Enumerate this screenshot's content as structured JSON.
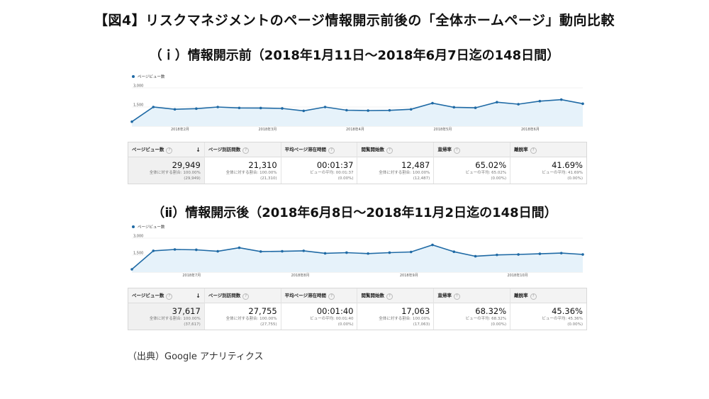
{
  "title": "【図4】リスクマネジメントのページ情報開示前後の「全体ホームページ」動向比較",
  "source_note": "（出典）Google アナリティクス",
  "colors": {
    "line": "#1f6aa5",
    "area": "#e6f2fa"
  },
  "sections": [
    {
      "heading": "（ｉ）情報開示前（2018年1月11日～2018年6月7日迄の148日間）",
      "chart_data": {
        "type": "area",
        "legend": "ページビュー数",
        "y_ticks": [
          "3,000",
          "1,500"
        ],
        "ylim": [
          0,
          3000
        ],
        "x_ticks": [
          "2018年2月",
          "2018年3月",
          "2018年4月",
          "2018年5月",
          "2018年6月"
        ],
        "values": [
          350,
          1500,
          1320,
          1370,
          1500,
          1430,
          1420,
          1390,
          1200,
          1500,
          1250,
          1220,
          1240,
          1320,
          1800,
          1480,
          1440,
          1880,
          1720,
          1960,
          2080,
          1760
        ]
      },
      "stats": [
        {
          "label": "ページビュー数",
          "value": "29,949",
          "sub1": "全体に対する割合: 100.00%",
          "sub2": "(29,949)",
          "sort": "↓"
        },
        {
          "label": "ページ別訪問数",
          "value": "21,310",
          "sub1": "全体に対する割合: 100.00%",
          "sub2": "(21,310)"
        },
        {
          "label": "平均ページ滞在時間",
          "value": "00:01:37",
          "sub1": "ビューの平均: 00:01:37",
          "sub2": "(0.00%)"
        },
        {
          "label": "閲覧開始数",
          "value": "12,487",
          "sub1": "全体に対する割合: 100.00%",
          "sub2": "(12,487)"
        },
        {
          "label": "直帰率",
          "value": "65.02%",
          "sub1": "ビューの平均: 65.02%",
          "sub2": "(0.00%)"
        },
        {
          "label": "離脱率",
          "value": "41.69%",
          "sub1": "ビューの平均: 41.69%",
          "sub2": "(0.00%)"
        }
      ]
    },
    {
      "heading": "（ⅱ）情報開示後（2018年6月8日～2018年11月2日迄の148日間）",
      "chart_data": {
        "type": "area",
        "legend": "ページビュー数",
        "y_ticks": [
          "3,000",
          "1,500"
        ],
        "ylim": [
          0,
          3000
        ],
        "x_ticks": [
          "2018年7月",
          "2018年8月",
          "2018年9月",
          "2018年10月"
        ],
        "values": [
          250,
          1880,
          2000,
          1970,
          1840,
          2150,
          1820,
          1840,
          1880,
          1660,
          1720,
          1640,
          1720,
          1780,
          2400,
          1800,
          1400,
          1520,
          1560,
          1620,
          1680,
          1560
        ]
      },
      "stats": [
        {
          "label": "ページビュー数",
          "value": "37,617",
          "sub1": "全体に対する割合: 100.00%",
          "sub2": "(37,617)",
          "sort": "↓"
        },
        {
          "label": "ページ別訪問数",
          "value": "27,755",
          "sub1": "全体に対する割合: 100.00%",
          "sub2": "(27,755)"
        },
        {
          "label": "平均ページ滞在時間",
          "value": "00:01:40",
          "sub1": "ビューの平均: 00:01:40",
          "sub2": "(0.00%)"
        },
        {
          "label": "閲覧開始数",
          "value": "17,063",
          "sub1": "全体に対する割合: 100.00%",
          "sub2": "(17,063)"
        },
        {
          "label": "直帰率",
          "value": "68.32%",
          "sub1": "ビューの平均: 68.32%",
          "sub2": "(0.00%)"
        },
        {
          "label": "離脱率",
          "value": "45.36%",
          "sub1": "ビューの平均: 45.36%",
          "sub2": "(0.00%)"
        }
      ]
    }
  ]
}
